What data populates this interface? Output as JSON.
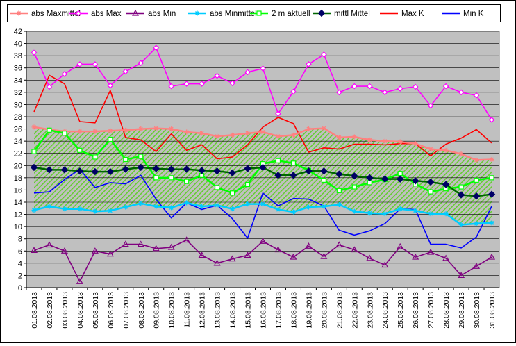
{
  "chart_data": {
    "type": "line",
    "title": "",
    "xlabel": "",
    "ylabel": "",
    "ylim": [
      0,
      42
    ],
    "yticks": [
      0,
      2,
      4,
      6,
      8,
      10,
      12,
      14,
      16,
      18,
      20,
      22,
      24,
      26,
      28,
      30,
      32,
      34,
      36,
      38,
      40,
      42
    ],
    "grid": true,
    "legend_position": "top",
    "plot_background": "#c0c0c0",
    "band_fill": "#66cc33",
    "categories": [
      "01.08.2013",
      "02.08.2013",
      "03.08.2013",
      "04.08.2013",
      "05.08.2013",
      "06.08.2013",
      "07.08.2013",
      "08.08.2013",
      "09.08.2013",
      "10.08.2013",
      "11.08.2013",
      "12.08.2013",
      "13.08.2013",
      "14.08.2013",
      "15.08.2013",
      "16.08.2013",
      "17.08.2013",
      "18.08.2013",
      "19.08.2013",
      "20.08.2013",
      "21.08.2013",
      "22.08.2013",
      "23.08.2013",
      "24.08.2013",
      "25.08.2013",
      "26.08.2013",
      "27.08.2013",
      "28.08.2013",
      "29.08.2013",
      "30.08.2013",
      "31.08.2013"
    ],
    "series": [
      {
        "name": "abs Maxmittel",
        "color": "#ff8080",
        "marker": "star",
        "values": [
          26.3,
          25.9,
          25.6,
          25.6,
          25.6,
          25.7,
          25.8,
          26.0,
          26.1,
          26.0,
          25.5,
          25.3,
          24.8,
          25.0,
          25.3,
          25.5,
          24.8,
          25.0,
          26.0,
          26.1,
          24.6,
          24.7,
          24.2,
          24.0,
          23.9,
          23.6,
          22.7,
          22.5,
          21.9,
          20.9,
          21.0
        ]
      },
      {
        "name": "abs Max",
        "color": "#ff00ff",
        "marker": "diamond-open",
        "values": [
          38.5,
          32.9,
          35.0,
          36.6,
          36.6,
          33.1,
          35.4,
          36.8,
          39.3,
          33.0,
          33.4,
          33.4,
          34.7,
          33.5,
          35.3,
          35.9,
          28.5,
          32.1,
          36.6,
          38.2,
          32.0,
          33.0,
          33.0,
          32.0,
          32.6,
          32.9,
          29.8,
          33.0,
          32.0,
          31.5,
          27.5
        ]
      },
      {
        "name": "abs Min",
        "color": "#800080",
        "marker": "triangle-open",
        "values": [
          6.1,
          7.0,
          6.0,
          1.0,
          6.0,
          5.5,
          7.1,
          7.1,
          6.4,
          6.6,
          7.8,
          5.3,
          4.0,
          4.7,
          5.3,
          7.6,
          6.2,
          5.0,
          6.8,
          5.1,
          7.0,
          6.2,
          4.8,
          3.7,
          6.7,
          5.0,
          5.8,
          4.8,
          2.0,
          3.5,
          5.0
        ]
      },
      {
        "name": "abs Minmittel",
        "color": "#00ccff",
        "marker": "star",
        "values": [
          12.7,
          13.3,
          12.9,
          12.9,
          12.5,
          12.6,
          13.2,
          13.8,
          13.3,
          13.1,
          13.9,
          13.3,
          13.5,
          12.9,
          13.7,
          13.7,
          12.8,
          12.4,
          13.2,
          13.3,
          13.6,
          12.5,
          12.2,
          12.1,
          12.9,
          12.6,
          12.1,
          12.1,
          10.3,
          10.5,
          10.6
        ]
      },
      {
        "name": "2 m aktuell",
        "color": "#00ff00",
        "marker": "square-open",
        "values": [
          22.3,
          25.8,
          25.3,
          22.5,
          21.4,
          24.3,
          21.0,
          21.5,
          18.0,
          18.0,
          17.4,
          18.4,
          16.4,
          15.5,
          16.9,
          20.3,
          20.8,
          20.4,
          19.2,
          17.6,
          15.9,
          16.5,
          17.2,
          17.7,
          18.7,
          17.0,
          15.7,
          16.2,
          16.5,
          17.6,
          18.0
        ]
      },
      {
        "name": "mittl Mittel",
        "color": "#006600",
        "marker": "diamond-filled",
        "marker_color": "#000066",
        "values": [
          19.7,
          19.3,
          19.3,
          19.1,
          19.0,
          19.0,
          19.4,
          19.7,
          19.5,
          19.4,
          19.4,
          19.2,
          19.1,
          18.8,
          19.5,
          19.7,
          18.4,
          18.4,
          19.1,
          19.1,
          18.6,
          18.3,
          18.0,
          17.8,
          17.8,
          17.5,
          17.3,
          16.9,
          15.2,
          15.0,
          15.3
        ]
      },
      {
        "name": "Max K",
        "color": "#ff0000",
        "marker": "none",
        "values": [
          28.8,
          34.8,
          33.4,
          27.2,
          27.0,
          32.3,
          24.6,
          24.2,
          22.3,
          25.2,
          22.5,
          23.4,
          21.1,
          21.4,
          23.4,
          26.3,
          27.9,
          26.9,
          22.2,
          22.9,
          22.7,
          23.5,
          23.5,
          23.4,
          23.6,
          23.6,
          21.6,
          23.5,
          24.5,
          25.9,
          23.7
        ]
      },
      {
        "name": "Min K",
        "color": "#0000ff",
        "marker": "none",
        "values": [
          15.5,
          15.7,
          17.7,
          19.4,
          16.4,
          17.2,
          17.0,
          18.4,
          14.5,
          11.4,
          13.9,
          12.8,
          13.5,
          11.3,
          8.1,
          15.5,
          13.4,
          14.6,
          14.5,
          13.4,
          9.4,
          8.6,
          9.3,
          10.5,
          12.9,
          12.8,
          7.1,
          7.1,
          6.5,
          8.3,
          13.3
        ]
      }
    ]
  }
}
